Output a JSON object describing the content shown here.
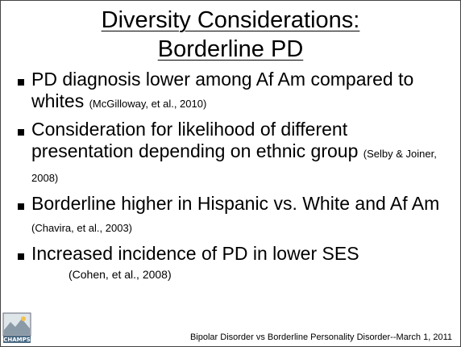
{
  "header": {
    "title_lines": [
      "Diversity Considerations:",
      "Borderline PD"
    ]
  },
  "bullets": [
    {
      "text": "PD diagnosis lower among Af Am compared to whites",
      "citation": "(McGilloway, et al., 2010)"
    },
    {
      "text": "Consideration for likelihood of different presentation depending on ethnic group",
      "citation": "(Selby & Joiner, 2008)"
    },
    {
      "text": "Borderline higher in Hispanic vs. White and Af Am",
      "citation": "(Chavira, et al., 2003)"
    },
    {
      "text": "Increased incidence of PD in lower SES",
      "citation": "(Cohen, et al., 2008)"
    }
  ],
  "logo": {
    "label": "CHAMPS"
  },
  "footer": {
    "text": "Bipolar Disorder vs Borderline Personality Disorder--March 1, 2011"
  }
}
